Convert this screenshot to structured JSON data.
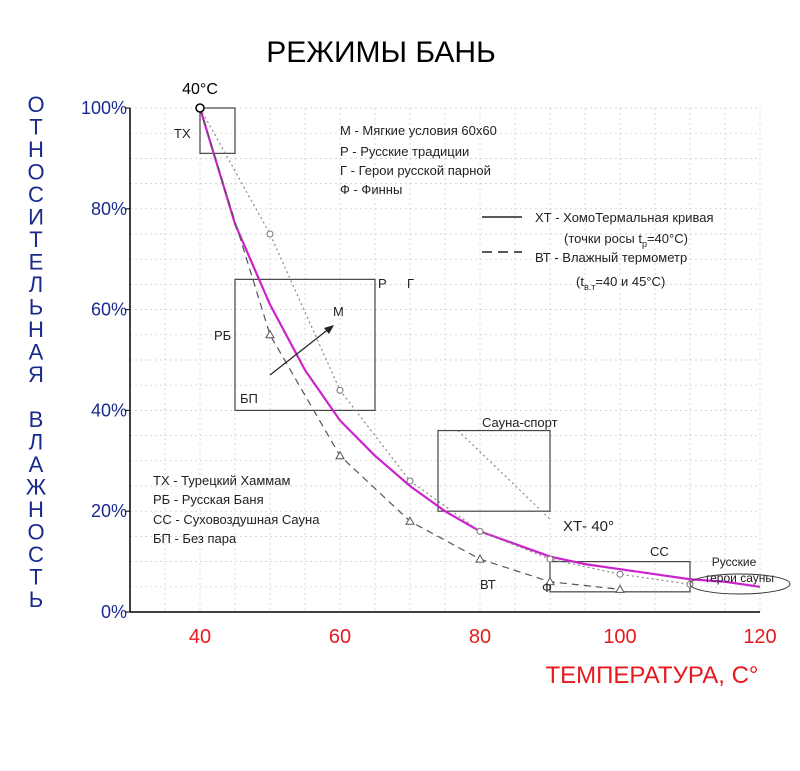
{
  "chart_data": {
    "type": "line",
    "title": "РЕЖИМЫ БАНЬ",
    "xlabel": "ТЕМПЕРАТУРА,  С°",
    "ylabel_letters": [
      "О",
      "Т",
      "Н",
      "О",
      "С",
      "И",
      "Т",
      "Е",
      "Л",
      "Ь",
      "Н",
      "А",
      "Я",
      "",
      "В",
      "Л",
      "А",
      "Ж",
      "Н",
      "О",
      "С",
      "Т",
      "Ь"
    ],
    "xlim": [
      30,
      120
    ],
    "ylim": [
      0,
      100
    ],
    "x_ticks": [
      40,
      60,
      80,
      100,
      120
    ],
    "y_ticks": [
      "0%",
      "20%",
      "40%",
      "60%",
      "80%",
      "100%"
    ],
    "y_tick_values": [
      0,
      20,
      40,
      60,
      80,
      100
    ],
    "grid": true,
    "series": [
      {
        "name": "ХТ",
        "color": "#cc22cc",
        "style": "solid",
        "x": [
          40,
          45,
          50,
          55,
          60,
          65,
          70,
          75,
          80,
          85,
          90,
          95,
          100,
          105,
          110,
          115,
          120
        ],
        "y": [
          100,
          77,
          61,
          48,
          38,
          31,
          25,
          20,
          16,
          13.5,
          11,
          9.5,
          8.5,
          7.5,
          6.5,
          6,
          5
        ]
      },
      {
        "name": "ВТ",
        "color": "#555555",
        "style": "dashed",
        "x": [
          40,
          50,
          60,
          70,
          80,
          90,
          100
        ],
        "y": [
          100,
          55,
          31,
          18,
          10.5,
          6,
          4.5
        ]
      },
      {
        "color": "#888888",
        "style": "dotted",
        "x": [
          40,
          50,
          60,
          70,
          80,
          90,
          100,
          110
        ],
        "y": [
          100,
          75,
          44,
          26,
          16,
          10.5,
          7.5,
          5.5
        ]
      }
    ],
    "regions": [
      {
        "label": "ТХ",
        "x": [
          40,
          45
        ],
        "y": [
          91,
          100
        ]
      },
      {
        "label": "РБ",
        "x": [
          45,
          65
        ],
        "y": [
          40,
          66
        ]
      },
      {
        "label": "Сауна-спорт",
        "x": [
          74,
          90
        ],
        "y": [
          20,
          36
        ]
      },
      {
        "label": "СС",
        "x": [
          90,
          110
        ],
        "y": [
          4,
          10
        ]
      }
    ],
    "annotations": {
      "top_point": "40°C",
      "r": "Р",
      "g": "Г",
      "m": "М",
      "bp": "БП",
      "rb": "РБ",
      "tx": "ТХ",
      "vt": "ВТ",
      "xt40": "ХТ- 40°",
      "ss": "СС",
      "phi": "Ф",
      "sauna_sport": "Сауна-спорт",
      "heroes_line1": "Русские",
      "heroes_line2": "герои сауны"
    },
    "legend_top": [
      "М - Мягкие условия 60х60",
      "Р - Русские традиции",
      "Г - Герои русской парной",
      "Ф - Финны"
    ],
    "legend_lines": {
      "xt_line1": "ХТ - ХомоТермальная кривая",
      "xt_line2": "(точки росы t",
      "xt_line2_sub": "р",
      "xt_line2_end": "=40°С)",
      "vt_line1": "ВТ - Влажный термометр",
      "vt_line2": "(t",
      "vt_line2_sub": "в.т",
      "vt_line2_end": "=40 и 45°С)"
    },
    "legend_bottom": [
      "ТХ - Турецкий Хаммам",
      "РБ - Русская Баня",
      "СС - Суховоздушная Сауна",
      "БП - Без пара"
    ]
  }
}
